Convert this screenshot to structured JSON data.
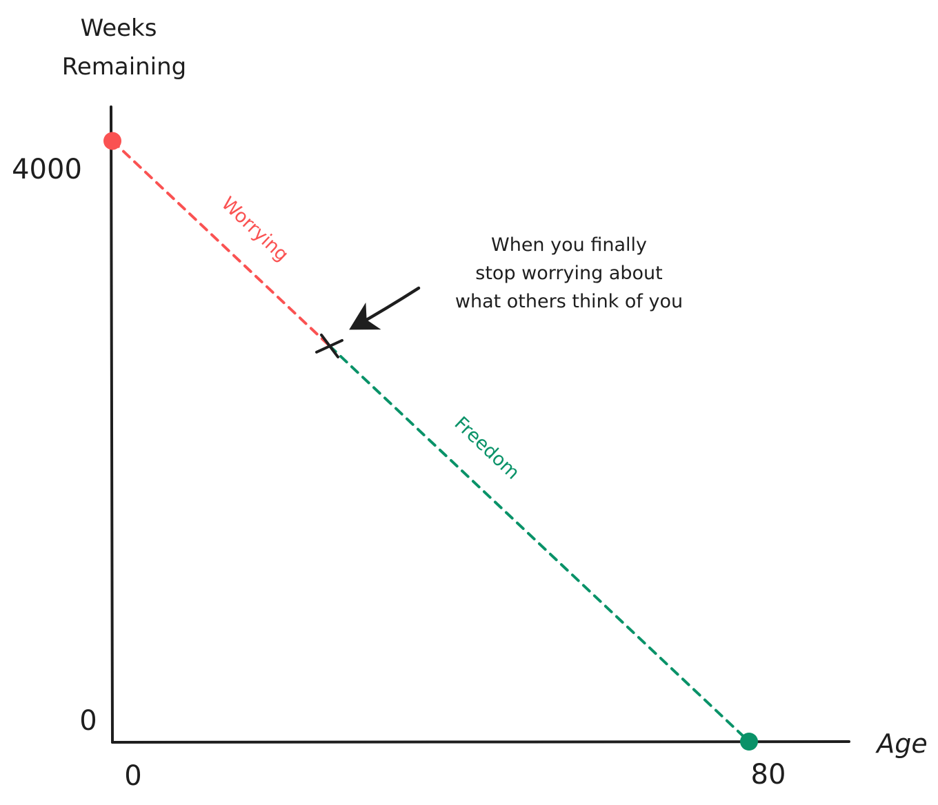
{
  "colors": {
    "axis": "#1e1e1e",
    "worrying": "#fa5252",
    "freedom": "#099268",
    "marker": "#1e1e1e"
  },
  "chart_data": {
    "type": "line",
    "ylabel": [
      "Weeks",
      "Remaining"
    ],
    "xlabel": "Age",
    "x_ticks": [
      {
        "value": 0,
        "label": "0"
      },
      {
        "value": 80,
        "label": "80"
      }
    ],
    "y_ticks": [
      {
        "value": 0,
        "label": "0"
      },
      {
        "value": 4000,
        "label": "4000"
      }
    ],
    "xlim": [
      0,
      92
    ],
    "ylim": [
      0,
      4200
    ],
    "series": [
      {
        "name": "Worrying",
        "color_key": "worrying",
        "style": "dashed",
        "points": [
          {
            "x": 0,
            "y": 4160
          },
          {
            "x": 27.3,
            "y": 2740
          }
        ]
      },
      {
        "name": "Freedom",
        "color_key": "freedom",
        "style": "dashed",
        "points": [
          {
            "x": 27.3,
            "y": 2740
          },
          {
            "x": 80,
            "y": 0
          }
        ]
      }
    ],
    "start_point": {
      "x": 0,
      "y": 4160
    },
    "end_point": {
      "x": 80,
      "y": 0
    },
    "marker": {
      "x": 27.3,
      "y": 2740,
      "shape": "x"
    },
    "annotation": {
      "lines": [
        "When you finally",
        "stop worrying about",
        "what others think of you"
      ],
      "points_to": {
        "x": 27.3,
        "y": 2740
      }
    },
    "grid": false,
    "legend": "none"
  }
}
